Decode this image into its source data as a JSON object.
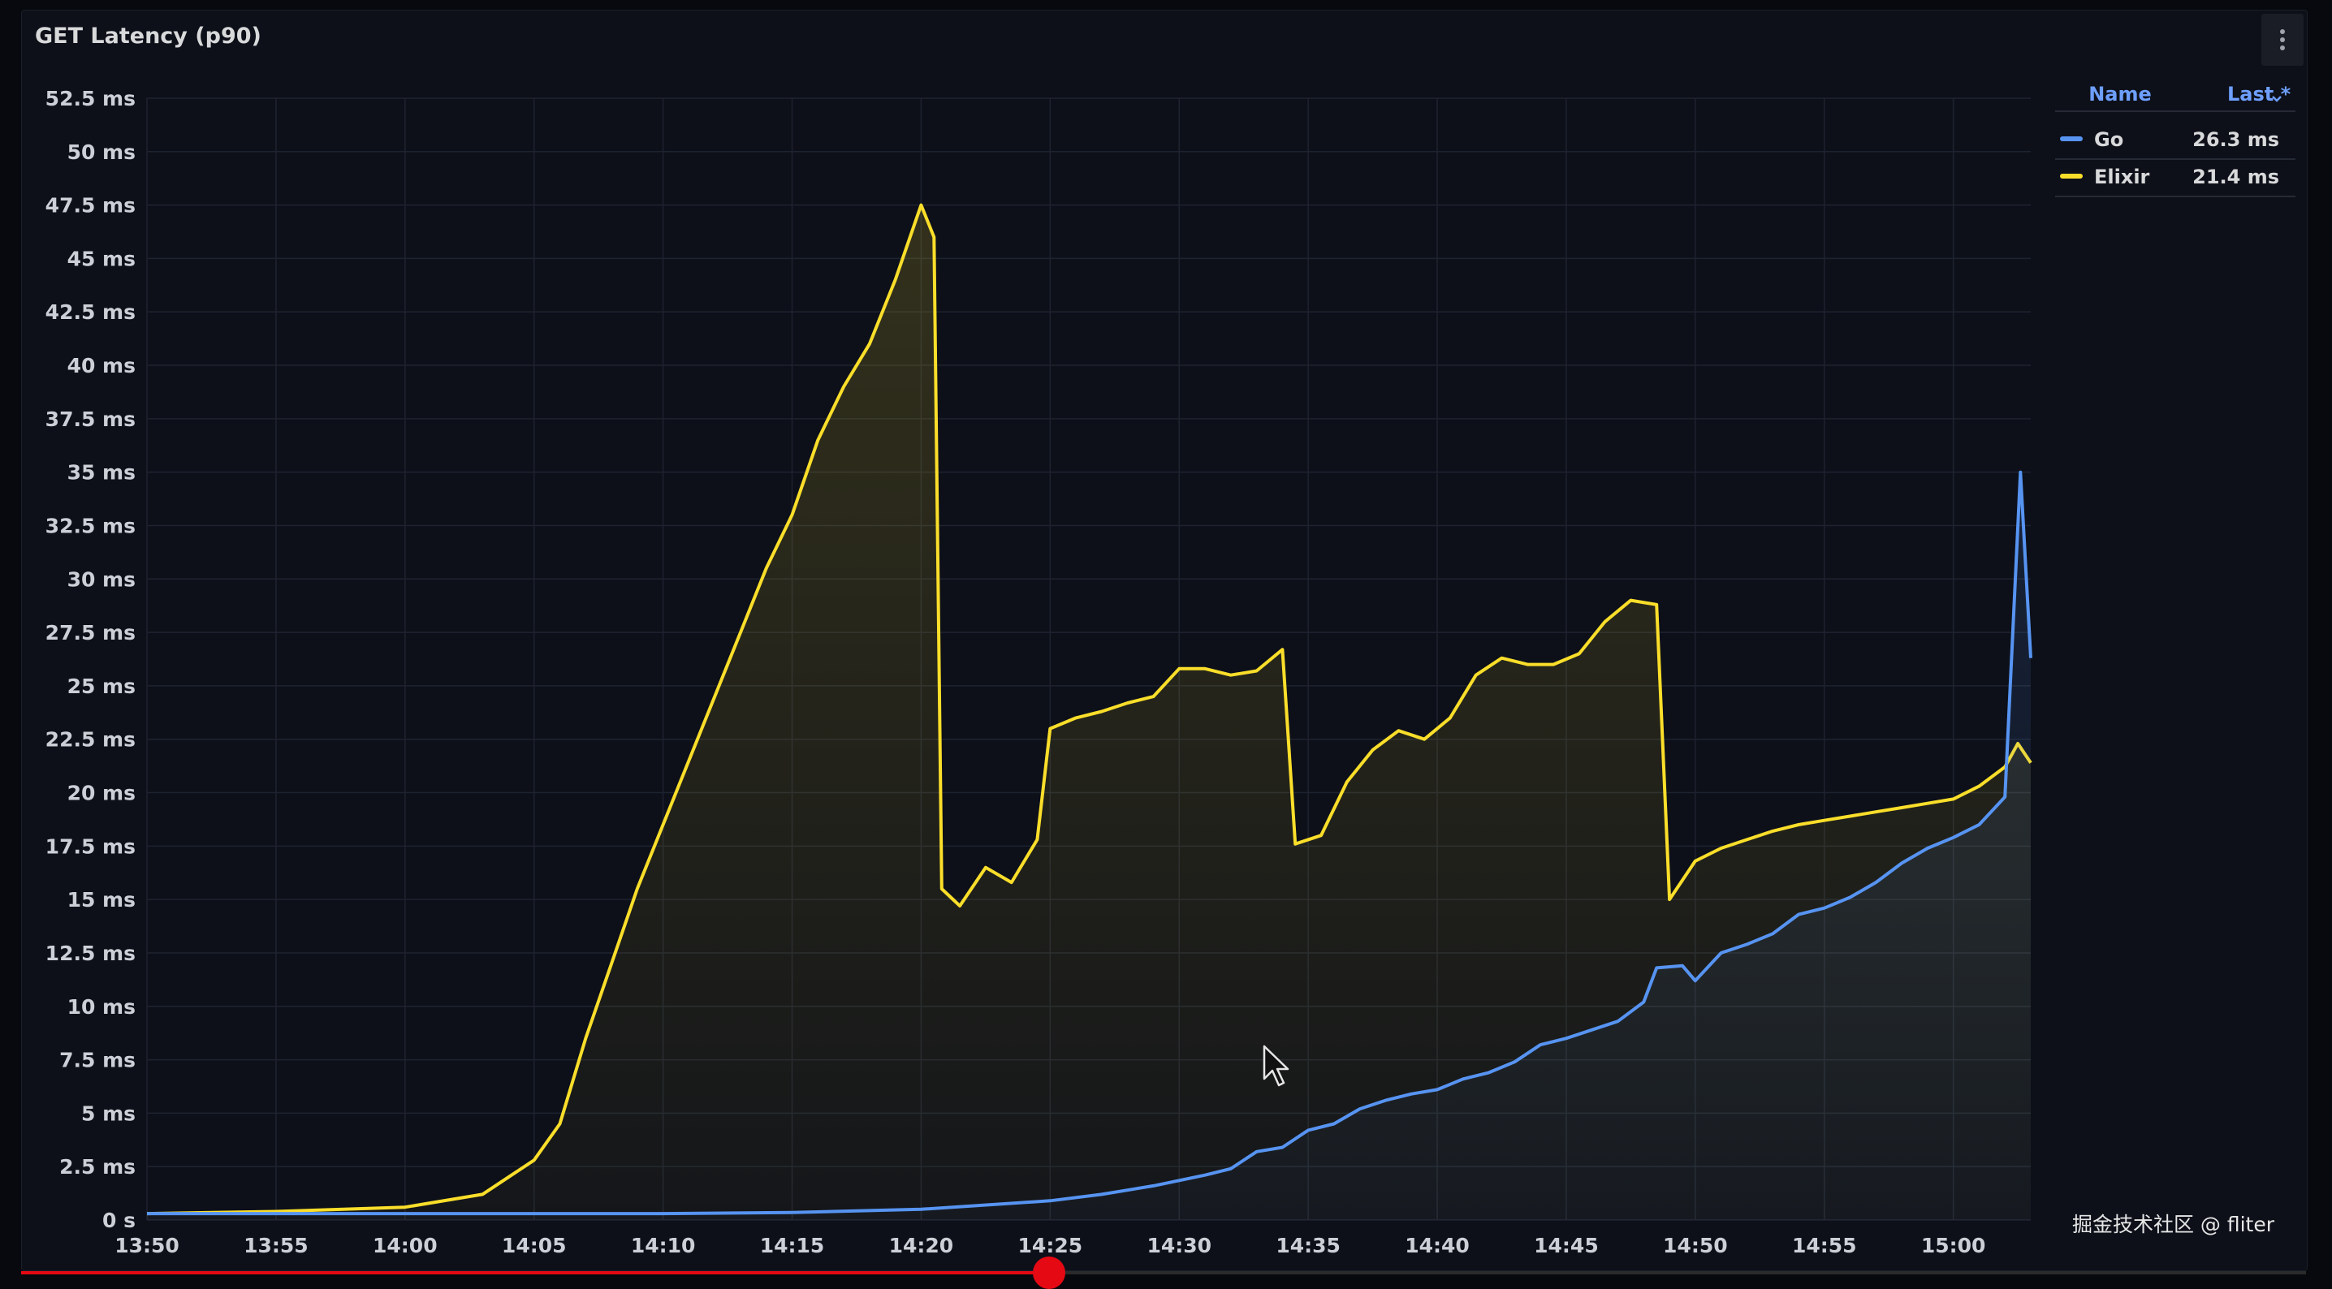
{
  "panel": {
    "title": "GET Latency (p90)"
  },
  "legend": {
    "name_header": "Name",
    "last_header": "Last *",
    "items": [
      {
        "name": "Go",
        "last": "26.3 ms",
        "color": "#5794f2"
      },
      {
        "name": "Elixir",
        "last": "21.4 ms",
        "color": "#fade2a"
      }
    ]
  },
  "watermark": "掘金技术社区 @ fliter",
  "colors": {
    "background": "#0d1019",
    "grid": "#1e2330",
    "go": "#5794f2",
    "elixir": "#fade2a"
  },
  "progress": {
    "fraction": 0.45
  },
  "chart_data": {
    "type": "line",
    "title": "GET Latency (p90)",
    "ylim": [
      0,
      52.5
    ],
    "y_unit": "ms",
    "y_ticks": [
      {
        "value": 0,
        "label": "0 s"
      },
      {
        "value": 2.5,
        "label": "2.5 ms"
      },
      {
        "value": 5,
        "label": "5 ms"
      },
      {
        "value": 7.5,
        "label": "7.5 ms"
      },
      {
        "value": 10,
        "label": "10 ms"
      },
      {
        "value": 12.5,
        "label": "12.5 ms"
      },
      {
        "value": 15,
        "label": "15 ms"
      },
      {
        "value": 17.5,
        "label": "17.5 ms"
      },
      {
        "value": 20,
        "label": "20 ms"
      },
      {
        "value": 22.5,
        "label": "22.5 ms"
      },
      {
        "value": 25,
        "label": "25 ms"
      },
      {
        "value": 27.5,
        "label": "27.5 ms"
      },
      {
        "value": 30,
        "label": "30 ms"
      },
      {
        "value": 32.5,
        "label": "32.5 ms"
      },
      {
        "value": 35,
        "label": "35 ms"
      },
      {
        "value": 37.5,
        "label": "37.5 ms"
      },
      {
        "value": 40,
        "label": "40 ms"
      },
      {
        "value": 42.5,
        "label": "42.5 ms"
      },
      {
        "value": 45,
        "label": "45 ms"
      },
      {
        "value": 47.5,
        "label": "47.5 ms"
      },
      {
        "value": 50,
        "label": "50 ms"
      },
      {
        "value": 52.5,
        "label": "52.5 ms"
      }
    ],
    "x_ticks": [
      "13:50",
      "13:55",
      "14:00",
      "14:05",
      "14:10",
      "14:15",
      "14:20",
      "14:25",
      "14:30",
      "14:35",
      "14:40",
      "14:45",
      "14:50",
      "14:55",
      "15:00"
    ],
    "xlim": [
      "13:50",
      "15:03"
    ],
    "grid": true,
    "legend_position": "top-right",
    "series": [
      {
        "name": "Go",
        "color": "#5794f2",
        "points": [
          [
            "13:50",
            0.3
          ],
          [
            "14:00",
            0.3
          ],
          [
            "14:10",
            0.3
          ],
          [
            "14:15",
            0.35
          ],
          [
            "14:20",
            0.5
          ],
          [
            "14:25",
            0.9
          ],
          [
            "14:27",
            1.2
          ],
          [
            "14:29",
            1.6
          ],
          [
            "14:31",
            2.1
          ],
          [
            "14:32",
            2.4
          ],
          [
            "14:33",
            3.2
          ],
          [
            "14:34",
            3.4
          ],
          [
            "14:35",
            4.2
          ],
          [
            "14:36",
            4.5
          ],
          [
            "14:37",
            5.2
          ],
          [
            "14:38",
            5.6
          ],
          [
            "14:39",
            5.9
          ],
          [
            "14:40",
            6.1
          ],
          [
            "14:41",
            6.6
          ],
          [
            "14:42",
            6.9
          ],
          [
            "14:43",
            7.4
          ],
          [
            "14:44",
            8.2
          ],
          [
            "14:45",
            8.5
          ],
          [
            "14:46",
            8.9
          ],
          [
            "14:47",
            9.3
          ],
          [
            "14:48",
            10.2
          ],
          [
            "14:48.5",
            11.8
          ],
          [
            "14:49.5",
            11.9
          ],
          [
            "14:50",
            11.2
          ],
          [
            "14:51",
            12.5
          ],
          [
            "14:52",
            12.9
          ],
          [
            "14:53",
            13.4
          ],
          [
            "14:54",
            14.3
          ],
          [
            "14:55",
            14.6
          ],
          [
            "14:56",
            15.1
          ],
          [
            "14:57",
            15.8
          ],
          [
            "14:58",
            16.7
          ],
          [
            "14:59",
            17.4
          ],
          [
            "15:00",
            17.9
          ],
          [
            "15:01",
            18.5
          ],
          [
            "15:02",
            19.8
          ],
          [
            "15:02.6",
            35.0
          ],
          [
            "15:03",
            26.3
          ]
        ]
      },
      {
        "name": "Elixir",
        "color": "#fade2a",
        "points": [
          [
            "13:50",
            0.3
          ],
          [
            "13:55",
            0.4
          ],
          [
            "14:00",
            0.6
          ],
          [
            "14:03",
            1.2
          ],
          [
            "14:05",
            2.8
          ],
          [
            "14:06",
            4.5
          ],
          [
            "14:07",
            8.5
          ],
          [
            "14:08",
            12.0
          ],
          [
            "14:09",
            15.5
          ],
          [
            "14:10",
            18.5
          ],
          [
            "14:11",
            21.5
          ],
          [
            "14:12",
            24.5
          ],
          [
            "14:13",
            27.5
          ],
          [
            "14:14",
            30.5
          ],
          [
            "14:15",
            33.0
          ],
          [
            "14:16",
            36.5
          ],
          [
            "14:17",
            39.0
          ],
          [
            "14:18",
            41.0
          ],
          [
            "14:19",
            44.0
          ],
          [
            "14:20",
            47.5
          ],
          [
            "14:20.5",
            46.0
          ],
          [
            "14:20.8",
            15.5
          ],
          [
            "14:21.5",
            14.7
          ],
          [
            "14:22.5",
            16.5
          ],
          [
            "14:23.5",
            15.8
          ],
          [
            "14:24.5",
            17.8
          ],
          [
            "14:25",
            23.0
          ],
          [
            "14:26",
            23.5
          ],
          [
            "14:27",
            23.8
          ],
          [
            "14:28",
            24.2
          ],
          [
            "14:29",
            24.5
          ],
          [
            "14:30",
            25.8
          ],
          [
            "14:31",
            25.8
          ],
          [
            "14:32",
            25.5
          ],
          [
            "14:33",
            25.7
          ],
          [
            "14:34",
            26.7
          ],
          [
            "14:34.5",
            17.6
          ],
          [
            "14:35.5",
            18.0
          ],
          [
            "14:36.5",
            20.5
          ],
          [
            "14:37.5",
            22.0
          ],
          [
            "14:38.5",
            22.9
          ],
          [
            "14:39.5",
            22.5
          ],
          [
            "14:40.5",
            23.5
          ],
          [
            "14:41.5",
            25.5
          ],
          [
            "14:42.5",
            26.3
          ],
          [
            "14:43.5",
            26.0
          ],
          [
            "14:44.5",
            26.0
          ],
          [
            "14:45.5",
            26.5
          ],
          [
            "14:46.5",
            28.0
          ],
          [
            "14:47.5",
            29.0
          ],
          [
            "14:48.5",
            28.8
          ],
          [
            "14:49",
            15.0
          ],
          [
            "14:50",
            16.8
          ],
          [
            "14:51",
            17.4
          ],
          [
            "14:52",
            17.8
          ],
          [
            "14:53",
            18.2
          ],
          [
            "14:54",
            18.5
          ],
          [
            "14:55",
            18.7
          ],
          [
            "14:56",
            18.9
          ],
          [
            "14:57",
            19.1
          ],
          [
            "14:58",
            19.3
          ],
          [
            "14:59",
            19.5
          ],
          [
            "15:00",
            19.7
          ],
          [
            "15:01",
            20.3
          ],
          [
            "15:02",
            21.2
          ],
          [
            "15:02.5",
            22.3
          ],
          [
            "15:03",
            21.4
          ]
        ]
      }
    ]
  }
}
